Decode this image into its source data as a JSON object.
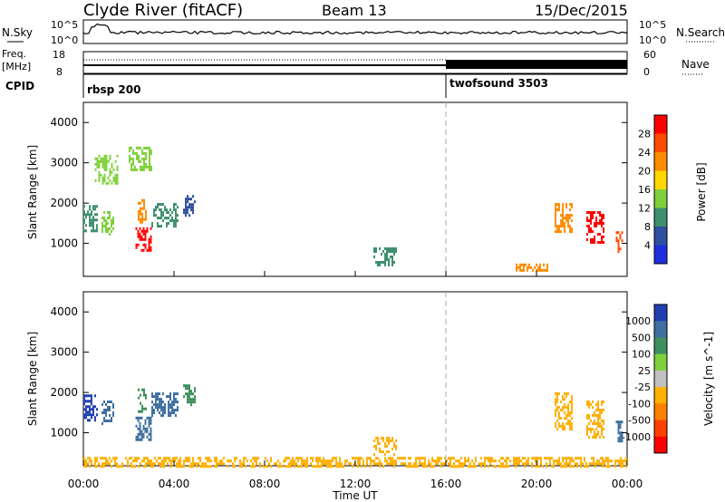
{
  "header": {
    "title": "Clyde River (fitACF)",
    "beam": "Beam 13",
    "date": "15/Dec/2015"
  },
  "strips": {
    "nsky_label": "N.Sky",
    "nsky_ticks": [
      "10^5",
      "10^0"
    ],
    "nsearch_label": "N.Search",
    "nsearch_ticks": [
      "10^5",
      "10^0"
    ],
    "freq_label_1": "Freq.",
    "freq_label_2": "[MHz]",
    "freq_ticks": [
      "18",
      "8"
    ],
    "nave_label": "Nave",
    "nave_ticks": [
      "60",
      "0"
    ],
    "cpid_label": "CPID",
    "cpid_segments": [
      {
        "name": "rbsp 200",
        "start_hour": 0
      },
      {
        "name": "twofsound 3503",
        "start_hour": 16
      }
    ]
  },
  "chart_data": [
    {
      "type": "heatmap",
      "title": "",
      "xlabel": "Time UT",
      "ylabel": "Slant Range [km]",
      "xlim": [
        0,
        24
      ],
      "ylim": [
        180,
        4500
      ],
      "x_ticks": [
        "00:00",
        "04:00",
        "08:00",
        "12:00",
        "16:00",
        "20:00",
        "00:00"
      ],
      "y_ticks": [
        "1000",
        "2000",
        "3000",
        "4000"
      ],
      "colorbar_label": "Power [dB]",
      "colorbar_ticks": [
        "28",
        "24",
        "20",
        "16",
        "12",
        "8",
        "4"
      ],
      "colorbar_colors": [
        "#ff0000",
        "#ff4a00",
        "#ff8c00",
        "#ffd700",
        "#7fd13b",
        "#3f8f6f",
        "#2f4fa0",
        "#1f2fe0"
      ],
      "marker_line_hour": 16,
      "echo_regions": [
        {
          "t0": 0.0,
          "t1": 0.6,
          "r0": 1300,
          "r1": 1950,
          "value": 8
        },
        {
          "t0": 0.8,
          "t1": 1.3,
          "r0": 1200,
          "r1": 1800,
          "value": 12
        },
        {
          "t0": 2.3,
          "t1": 3.0,
          "r0": 800,
          "r1": 1400,
          "value": 28
        },
        {
          "t0": 2.4,
          "t1": 2.8,
          "r0": 1500,
          "r1": 2100,
          "value": 20
        },
        {
          "t0": 3.0,
          "t1": 4.2,
          "r0": 1400,
          "r1": 2000,
          "value": 8
        },
        {
          "t0": 4.4,
          "t1": 4.9,
          "r0": 1700,
          "r1": 2200,
          "value": 4
        },
        {
          "t0": 0.5,
          "t1": 1.5,
          "r0": 2500,
          "r1": 3200,
          "value": 12
        },
        {
          "t0": 2.0,
          "t1": 3.0,
          "r0": 2800,
          "r1": 3400,
          "value": 12
        },
        {
          "t0": 12.8,
          "t1": 13.8,
          "r0": 450,
          "r1": 900,
          "value": 8
        },
        {
          "t0": 20.8,
          "t1": 21.6,
          "r0": 1300,
          "r1": 2000,
          "value": 20
        },
        {
          "t0": 22.2,
          "t1": 23.0,
          "r0": 1000,
          "r1": 1800,
          "value": 28
        },
        {
          "t0": 23.5,
          "t1": 23.8,
          "r0": 800,
          "r1": 1300,
          "value": 24
        },
        {
          "t0": 19.0,
          "t1": 20.5,
          "r0": 300,
          "r1": 500,
          "value": 20
        }
      ]
    },
    {
      "type": "heatmap",
      "title": "",
      "xlabel": "Time UT",
      "ylabel": "Slant Range [km]",
      "xlim": [
        0,
        24
      ],
      "ylim": [
        180,
        4500
      ],
      "x_ticks": [
        "00:00",
        "04:00",
        "08:00",
        "12:00",
        "16:00",
        "20:00",
        "00:00"
      ],
      "y_ticks": [
        "1000",
        "2000",
        "3000",
        "4000"
      ],
      "colorbar_label": "Velocity [m s^-1]",
      "colorbar_ticks": [
        "1000",
        "500",
        "100",
        "25",
        "-25",
        "-100",
        "-500",
        "-1000"
      ],
      "colorbar_colors": [
        "#1f3fb0",
        "#3f6fa0",
        "#3f8f5f",
        "#7fd13b",
        "#c0c0c0",
        "#ffb000",
        "#ff8000",
        "#ff4000",
        "#ff0000"
      ],
      "marker_line_hour": 16,
      "echo_regions": [
        {
          "t0": 0.0,
          "t1": 0.6,
          "r0": 1300,
          "r1": 1950,
          "value": 1000
        },
        {
          "t0": 0.8,
          "t1": 1.3,
          "r0": 1200,
          "r1": 1800,
          "value": 500
        },
        {
          "t0": 2.3,
          "t1": 3.0,
          "r0": 800,
          "r1": 1400,
          "value": 500
        },
        {
          "t0": 2.4,
          "t1": 2.8,
          "r0": 1500,
          "r1": 2100,
          "value": 100
        },
        {
          "t0": 3.0,
          "t1": 4.2,
          "r0": 1400,
          "r1": 2000,
          "value": 500
        },
        {
          "t0": 4.4,
          "t1": 4.9,
          "r0": 1700,
          "r1": 2200,
          "value": 100
        },
        {
          "t0": 12.8,
          "t1": 13.8,
          "r0": 450,
          "r1": 900,
          "value": -100
        },
        {
          "t0": 20.8,
          "t1": 21.6,
          "r0": 1100,
          "r1": 2000,
          "value": -100
        },
        {
          "t0": 22.2,
          "t1": 23.0,
          "r0": 900,
          "r1": 1800,
          "value": -100
        },
        {
          "t0": 23.5,
          "t1": 23.8,
          "r0": 800,
          "r1": 1300,
          "value": 500
        },
        {
          "t0": 0.0,
          "t1": 24.0,
          "r0": 180,
          "r1": 400,
          "value": -100
        }
      ]
    }
  ]
}
